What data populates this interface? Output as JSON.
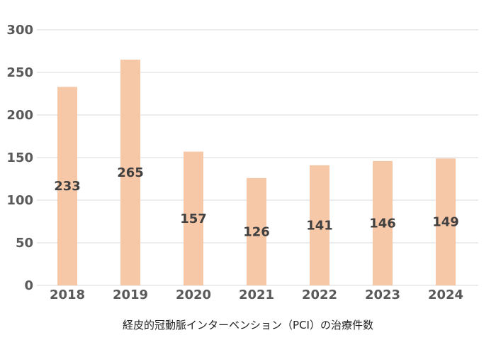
{
  "caption": "経皮的冠動脈インターベンション（PCI）の治療件数",
  "chart_data": {
    "type": "bar",
    "categories": [
      "2018",
      "2019",
      "2020",
      "2021",
      "2022",
      "2023",
      "2024"
    ],
    "values": [
      233,
      265,
      157,
      126,
      141,
      146,
      149
    ],
    "data_labels": [
      "233",
      "265",
      "157",
      "126",
      "141",
      "146",
      "149"
    ],
    "yticks": [
      0,
      50,
      100,
      150,
      200,
      250,
      300
    ],
    "ylim": [
      0,
      300
    ],
    "title": "",
    "xlabel": "経皮的冠動脈インターベンション（PCI）の治療件数",
    "ylabel": "",
    "grid": true,
    "legend": "none",
    "bar_color": "#f7c8a8",
    "grid_color": "#d9d9d9"
  }
}
